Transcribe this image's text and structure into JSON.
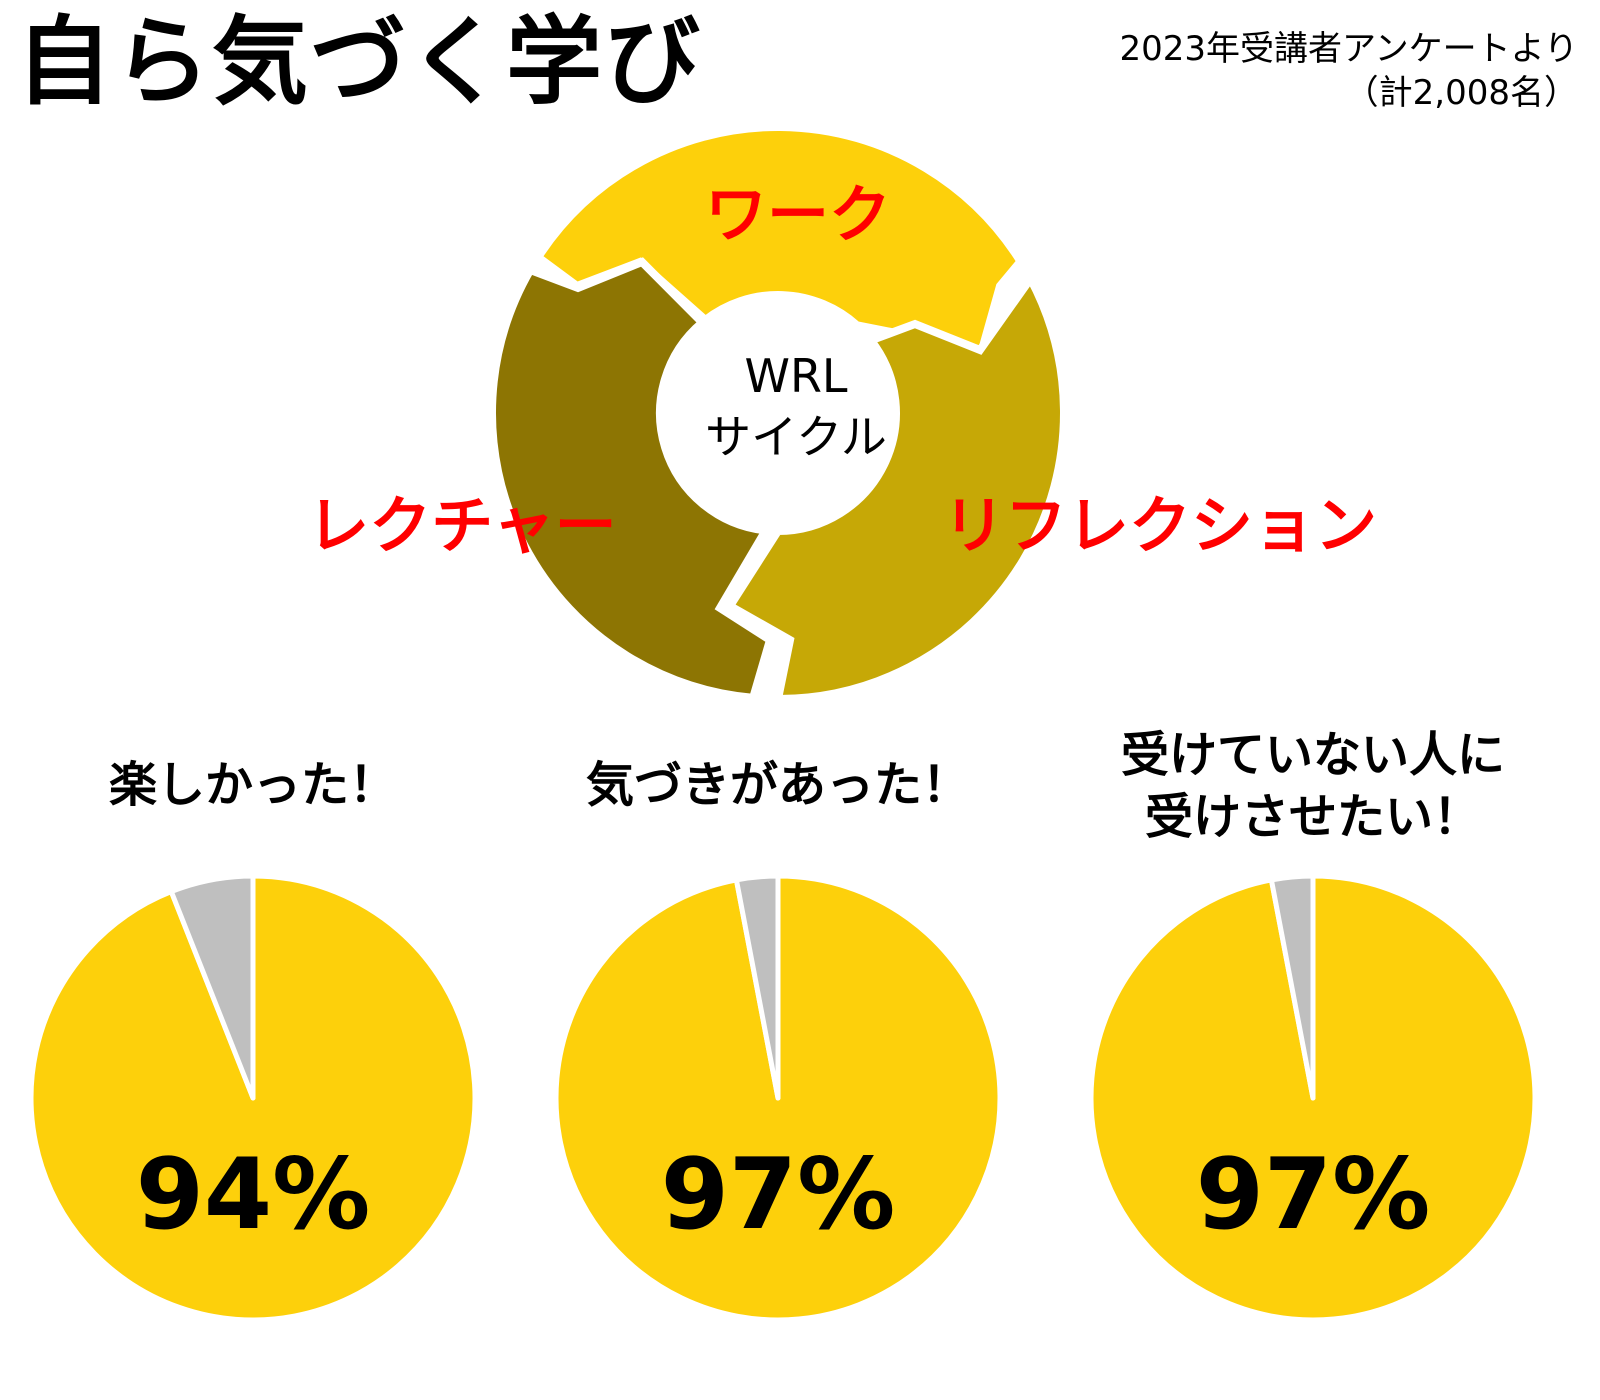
{
  "title": "自ら気づく学び",
  "source": {
    "line1": "2023年受講者アンケートより",
    "line2": "（計2,008名）"
  },
  "cycle": {
    "center_line1": "WRL",
    "center_line2": "サイクル",
    "stages": [
      {
        "label": "ワーク",
        "color": "#fdd00b"
      },
      {
        "label": "リフレクション",
        "color": "#c6a806"
      },
      {
        "label": "レクチャー",
        "color": "#8d7503"
      }
    ],
    "label_color": "#ff0000"
  },
  "chart_data": [
    {
      "type": "pie",
      "title_lines": [
        "楽しかった！"
      ],
      "categories": [
        "",
        ""
      ],
      "values": [
        94,
        6
      ],
      "colors": [
        "#fdd00b",
        "#bfbfbf"
      ],
      "label": "94%"
    },
    {
      "type": "pie",
      "title_lines": [
        "気づきがあった！"
      ],
      "categories": [
        "",
        ""
      ],
      "values": [
        97,
        3
      ],
      "colors": [
        "#fdd00b",
        "#bfbfbf"
      ],
      "label": "97%"
    },
    {
      "type": "pie",
      "title_lines": [
        "受けていない人に",
        "受けさせたい！"
      ],
      "categories": [
        "",
        ""
      ],
      "values": [
        97,
        3
      ],
      "colors": [
        "#fdd00b",
        "#bfbfbf"
      ],
      "label": "97%"
    }
  ]
}
